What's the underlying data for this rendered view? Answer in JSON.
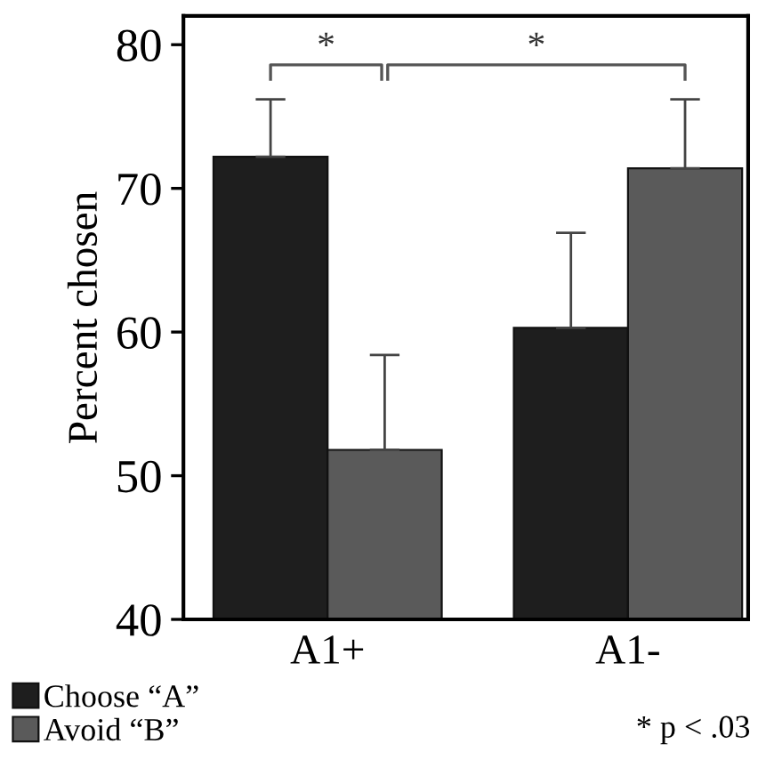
{
  "chart_data": {
    "type": "bar",
    "ylabel": "Percent chosen",
    "categories": [
      "A1+",
      "A1-"
    ],
    "series": [
      {
        "name": "Choose “A”",
        "color": "#1e1e1e",
        "values": [
          72.2,
          60.3
        ],
        "errors": [
          [
            72.2,
            76.2
          ],
          [
            60.3,
            66.9
          ]
        ]
      },
      {
        "name": "Avoid “B”",
        "color": "#5a5a5a",
        "values": [
          51.8,
          71.4
        ],
        "errors": [
          [
            51.8,
            58.4
          ],
          [
            71.4,
            76.2
          ]
        ]
      }
    ],
    "ylim": [
      40,
      82
    ],
    "yticks": [
      40,
      50,
      60,
      70,
      80
    ],
    "annotations": [
      "*",
      "*",
      "* p < .03"
    ],
    "legend": "bottom left",
    "grid": false
  }
}
